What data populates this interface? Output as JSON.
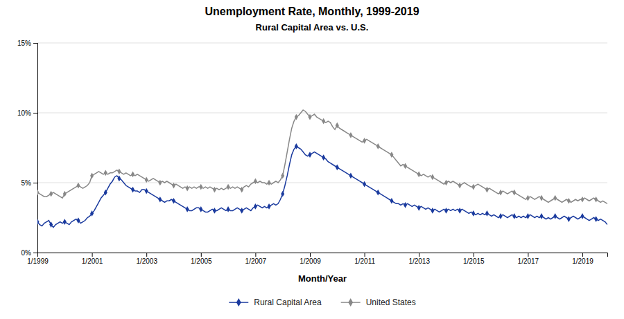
{
  "chart_data": {
    "type": "line",
    "title": "Unemployment Rate, Monthly, 1999-2019",
    "subtitle": "Rural Capital Area vs. U.S.",
    "xlabel": "Month/Year",
    "categories": [
      "1/1999",
      null,
      null,
      null,
      null,
      null,
      null,
      null,
      null,
      null,
      null,
      null,
      null,
      null,
      null,
      null,
      null,
      null,
      null,
      null,
      null,
      null,
      null,
      null,
      "1/2001",
      null,
      null,
      null,
      null,
      null,
      null,
      null,
      null,
      null,
      null,
      null,
      null,
      null,
      null,
      null,
      null,
      null,
      null,
      null,
      null,
      null,
      null,
      null,
      "1/2003",
      null,
      null,
      null,
      null,
      null,
      null,
      null,
      null,
      null,
      null,
      null,
      null,
      null,
      null,
      null,
      null,
      null,
      null,
      null,
      null,
      null,
      null,
      null,
      "1/2005",
      null,
      null,
      null,
      null,
      null,
      null,
      null,
      null,
      null,
      null,
      null,
      null,
      null,
      null,
      null,
      null,
      null,
      null,
      null,
      null,
      null,
      null,
      null,
      "1/2007",
      null,
      null,
      null,
      null,
      null,
      null,
      null,
      null,
      null,
      null,
      null,
      null,
      null,
      null,
      null,
      null,
      null,
      null,
      null,
      null,
      null,
      null,
      null,
      "1/2009",
      null,
      null,
      null,
      null,
      null,
      null,
      null,
      null,
      null,
      null,
      null,
      null,
      null,
      null,
      null,
      null,
      null,
      null,
      null,
      null,
      null,
      null,
      null,
      "1/2011",
      null,
      null,
      null,
      null,
      null,
      null,
      null,
      null,
      null,
      null,
      null,
      null,
      null,
      null,
      null,
      null,
      null,
      null,
      null,
      null,
      null,
      null,
      null,
      "1/2013",
      null,
      null,
      null,
      null,
      null,
      null,
      null,
      null,
      null,
      null,
      null,
      null,
      null,
      null,
      null,
      null,
      null,
      null,
      null,
      null,
      null,
      null,
      null,
      "1/2015",
      null,
      null,
      null,
      null,
      null,
      null,
      null,
      null,
      null,
      null,
      null,
      null,
      null,
      null,
      null,
      null,
      null,
      null,
      null,
      null,
      null,
      null,
      null,
      "1/2017",
      null,
      null,
      null,
      null,
      null,
      null,
      null,
      null,
      null,
      null,
      null,
      null,
      null,
      null,
      null,
      null,
      null,
      null,
      null,
      null,
      null,
      null,
      null,
      "1/2019",
      null,
      null,
      null,
      null,
      null,
      null,
      null,
      null,
      null,
      null,
      null
    ],
    "series": [
      {
        "name": "Rural Capital Area",
        "color": "#1a3a9e",
        "marker": "diamond",
        "line_style": "solid",
        "values": [
          2.2,
          2.0,
          1.9,
          2.1,
          2.2,
          2.3,
          2.0,
          1.8,
          2.0,
          2.1,
          2.2,
          2.1,
          2.2,
          2.1,
          2.0,
          2.2,
          2.3,
          2.4,
          2.3,
          2.1,
          2.2,
          2.3,
          2.5,
          2.6,
          2.8,
          3.0,
          3.3,
          3.6,
          3.9,
          4.1,
          4.3,
          4.6,
          4.9,
          5.1,
          5.4,
          5.5,
          5.3,
          5.2,
          5.0,
          4.8,
          4.7,
          4.6,
          4.5,
          4.4,
          4.4,
          4.3,
          4.5,
          4.5,
          4.4,
          4.3,
          4.2,
          4.1,
          4.0,
          3.9,
          3.8,
          3.7,
          3.6,
          3.7,
          3.7,
          3.8,
          3.7,
          3.6,
          3.5,
          3.4,
          3.3,
          3.2,
          3.1,
          3.0,
          3.0,
          3.1,
          3.2,
          3.2,
          3.1,
          3.0,
          2.9,
          2.9,
          3.0,
          3.1,
          3.0,
          3.0,
          3.1,
          3.2,
          3.1,
          3.0,
          3.1,
          3.0,
          3.0,
          3.1,
          3.2,
          3.1,
          3.0,
          3.1,
          3.2,
          3.1,
          3.0,
          3.2,
          3.3,
          3.4,
          3.3,
          3.2,
          3.3,
          3.2,
          3.3,
          3.4,
          3.5,
          3.4,
          3.5,
          3.8,
          4.2,
          4.8,
          5.5,
          6.3,
          7.0,
          7.4,
          7.6,
          7.5,
          7.4,
          7.2,
          7.0,
          6.9,
          7.0,
          7.1,
          7.2,
          7.1,
          7.0,
          6.9,
          6.8,
          6.7,
          6.5,
          6.4,
          6.3,
          6.2,
          6.1,
          6.0,
          5.9,
          5.8,
          5.7,
          5.6,
          5.5,
          5.4,
          5.3,
          5.2,
          5.1,
          5.0,
          4.9,
          4.8,
          4.7,
          4.6,
          4.5,
          4.4,
          4.3,
          4.2,
          4.1,
          4.0,
          3.9,
          3.8,
          3.7,
          3.6,
          3.5,
          3.5,
          3.4,
          3.5,
          3.4,
          3.5,
          3.4,
          3.3,
          3.4,
          3.3,
          3.2,
          3.3,
          3.2,
          3.1,
          3.2,
          3.1,
          3.0,
          3.1,
          3.0,
          2.9,
          3.0,
          3.1,
          3.0,
          3.1,
          3.0,
          3.1,
          3.0,
          3.1,
          3.0,
          3.1,
          3.0,
          2.9,
          2.8,
          2.9,
          2.8,
          2.7,
          2.8,
          2.7,
          2.8,
          2.7,
          2.8,
          2.7,
          2.6,
          2.7,
          2.6,
          2.5,
          2.6,
          2.7,
          2.6,
          2.5,
          2.6,
          2.7,
          2.6,
          2.5,
          2.6,
          2.5,
          2.6,
          2.5,
          2.6,
          2.7,
          2.6,
          2.5,
          2.6,
          2.5,
          2.6,
          2.5,
          2.4,
          2.5,
          2.4,
          2.5,
          2.6,
          2.5,
          2.4,
          2.5,
          2.6,
          2.5,
          2.4,
          2.5,
          2.6,
          2.5,
          2.4,
          2.5,
          2.6,
          2.5,
          2.4,
          2.3,
          2.4,
          2.5,
          2.4,
          2.3,
          2.4,
          2.3,
          2.2,
          2.0
        ]
      },
      {
        "name": "United States",
        "color": "#888888",
        "marker": "diamond",
        "line_style": "solid",
        "values": [
          4.3,
          4.2,
          4.1,
          4.0,
          4.0,
          4.1,
          4.2,
          4.3,
          4.2,
          4.1,
          4.0,
          3.9,
          4.2,
          4.3,
          4.4,
          4.5,
          4.6,
          4.7,
          4.8,
          4.7,
          4.6,
          4.7,
          4.8,
          5.0,
          5.5,
          5.6,
          5.7,
          5.8,
          5.7,
          5.6,
          5.7,
          5.6,
          5.7,
          5.7,
          5.8,
          5.9,
          5.8,
          5.7,
          5.6,
          5.7,
          5.6,
          5.5,
          5.6,
          5.5,
          5.6,
          5.5,
          5.4,
          5.3,
          5.2,
          5.1,
          5.2,
          5.3,
          5.2,
          5.1,
          5.0,
          5.1,
          5.0,
          5.1,
          5.0,
          4.9,
          4.8,
          4.9,
          4.8,
          4.7,
          4.6,
          4.7,
          4.6,
          4.7,
          4.6,
          4.7,
          4.6,
          4.7,
          4.7,
          4.6,
          4.7,
          4.6,
          4.7,
          4.6,
          4.5,
          4.6,
          4.5,
          4.6,
          4.5,
          4.6,
          4.7,
          4.6,
          4.7,
          4.6,
          4.7,
          4.6,
          4.5,
          4.7,
          4.8,
          4.7,
          4.9,
          5.0,
          5.1,
          5.0,
          5.1,
          5.0,
          5.0,
          4.9,
          5.0,
          4.9,
          5.0,
          5.1,
          5.0,
          5.2,
          5.5,
          6.3,
          7.2,
          8.1,
          8.9,
          9.4,
          9.7,
          9.8,
          10.0,
          10.2,
          10.1,
          9.9,
          9.7,
          9.8,
          9.9,
          9.7,
          9.6,
          9.5,
          9.4,
          9.3,
          9.4,
          9.3,
          9.0,
          8.8,
          9.1,
          8.9,
          8.8,
          8.7,
          8.6,
          8.5,
          8.4,
          8.3,
          8.2,
          8.1,
          8.0,
          7.9,
          8.0,
          8.1,
          8.0,
          7.9,
          7.8,
          7.7,
          7.6,
          7.5,
          7.4,
          7.3,
          7.2,
          7.1,
          7.0,
          6.8,
          6.6,
          6.4,
          6.2,
          6.3,
          6.2,
          6.1,
          6.0,
          5.9,
          5.8,
          5.7,
          5.6,
          5.5,
          5.6,
          5.5,
          5.4,
          5.5,
          5.4,
          5.3,
          5.2,
          5.1,
          5.0,
          4.9,
          5.0,
          5.1,
          5.0,
          5.1,
          5.0,
          4.9,
          4.8,
          4.9,
          5.0,
          4.9,
          4.8,
          4.7,
          4.7,
          4.8,
          4.9,
          4.8,
          4.7,
          4.6,
          4.5,
          4.6,
          4.5,
          4.4,
          4.3,
          4.2,
          4.3,
          4.4,
          4.3,
          4.2,
          4.3,
          4.4,
          4.3,
          4.2,
          4.1,
          4.0,
          3.9,
          3.8,
          3.9,
          4.0,
          3.9,
          3.8,
          3.9,
          4.0,
          3.9,
          3.8,
          3.7,
          3.6,
          3.7,
          3.8,
          3.9,
          3.8,
          3.7,
          3.6,
          3.7,
          3.8,
          3.7,
          3.6,
          3.7,
          3.8,
          3.7,
          3.8,
          3.8,
          3.9,
          3.8,
          3.7,
          3.8,
          3.9,
          3.8,
          3.7,
          3.6,
          3.7,
          3.6,
          3.5
        ]
      }
    ],
    "ylim": [
      0,
      15
    ],
    "yticks": [
      {
        "value": 0,
        "label": "0%"
      },
      {
        "value": 5,
        "label": "5%"
      },
      {
        "value": 10,
        "label": "10%"
      },
      {
        "value": 15,
        "label": "15%"
      }
    ],
    "grid": true,
    "legend": "bottom"
  }
}
